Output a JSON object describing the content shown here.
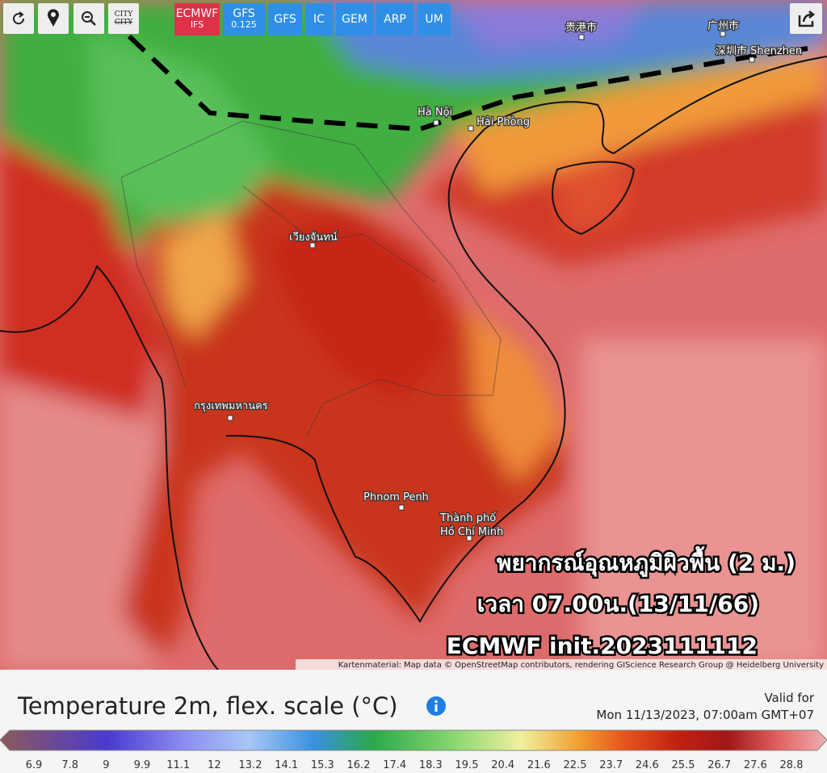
{
  "toolbar": {
    "ecmwf": [
      "ECMWF",
      "IFS"
    ],
    "gfs_fine": [
      "GFS",
      "0.125"
    ],
    "models": [
      "GFS",
      "IC",
      "GEM",
      "ARP",
      "UM"
    ],
    "city": "CITY"
  },
  "map": {
    "cities": [
      "贵港市",
      "广州市",
      "深圳市 Shenzhen",
      "Hà Nội",
      "Hải Phòng",
      "เวียงจันทน์",
      "กรุงเทพมหานคร",
      "Phnom Penh",
      "Thành phố",
      "Hồ Chí Minh"
    ],
    "overlay": [
      "พยากรณ์อุณหภูมิผิวพื้น (2 ม.)",
      "เวลา 07.00น.(13/11/66)",
      "ECMWF init.2023111112"
    ],
    "attribution": "Kartenmaterial: Map data © OpenStreetMap contributors, rendering GIScience Research Group @ Heidelberg University"
  },
  "legend": {
    "title": "Temperature 2m, flex. scale (°C)",
    "valid_label": "Valid for",
    "valid_time": "Mon 11/13/2023, 07:00am GMT+07",
    "scale_labels": [
      "6.9",
      "7.8",
      "9",
      "9.9",
      "11.1",
      "12",
      "13.2",
      "14.1",
      "15.3",
      "16.2",
      "17.4",
      "18.3",
      "19.5",
      "20.4",
      "21.6",
      "22.5",
      "23.7",
      "24.6",
      "25.5",
      "26.7",
      "27.6",
      "28.8"
    ]
  }
}
